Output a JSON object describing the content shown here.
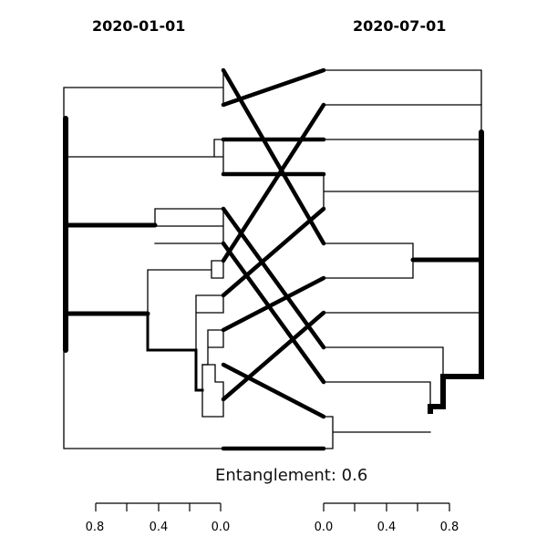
{
  "left_tree": {
    "title": "2020-01-01",
    "axis_ticks": [
      "0.8",
      "0.4",
      "0.0"
    ]
  },
  "right_tree": {
    "title": "2020-07-01",
    "axis_ticks": [
      "0.0",
      "0.4",
      "0.8"
    ]
  },
  "entanglement_label": "Entanglement: 0.6",
  "connectors": [
    {
      "from_leaf": 1,
      "to_leaf": 6
    },
    {
      "from_leaf": 2,
      "to_leaf": 1
    },
    {
      "from_leaf": 3,
      "to_leaf": 3
    },
    {
      "from_leaf": 4,
      "to_leaf": 4
    },
    {
      "from_leaf": 5,
      "to_leaf": 9
    },
    {
      "from_leaf": 6,
      "to_leaf": 10
    },
    {
      "from_leaf": 7,
      "to_leaf": 2
    },
    {
      "from_leaf": 8,
      "to_leaf": 5
    },
    {
      "from_leaf": 9,
      "to_leaf": 7
    },
    {
      "from_leaf": 10,
      "to_leaf": 11
    },
    {
      "from_leaf": 11,
      "to_leaf": 8
    },
    {
      "from_leaf": 12,
      "to_leaf": 12
    }
  ]
}
